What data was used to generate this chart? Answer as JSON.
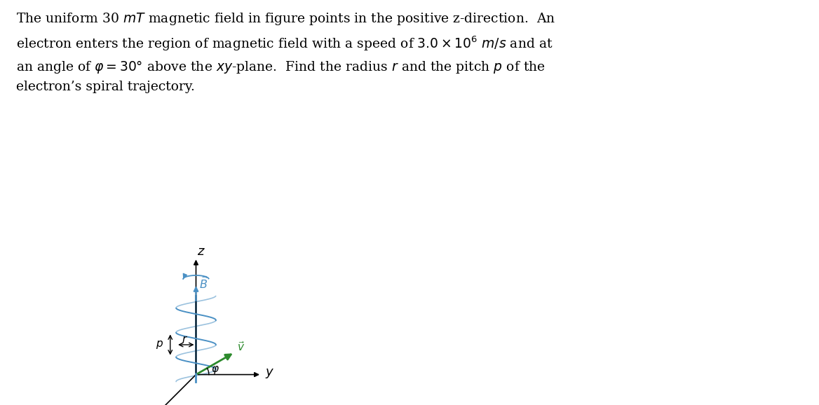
{
  "title_text": "The uniform 30 $mT$ magnetic field in figure points in the positive z-direction.  An\nelectron enters the region of magnetic field with a speed of $3.0 \\times 10^6$ $m/s$ and at\nan angle of $\\varphi = 30°$ above the $xy$-plane.  Find the radius $r$ and the pitch $p$ of the\nelectron’s spiral trajectory.",
  "text_color": "#000000",
  "spiral_color": "#4a90c4",
  "axis_color": "#4a90c4",
  "B_arrow_color": "#4a90c4",
  "v_arrow_color": "#2d8a2d",
  "background_color": "#ffffff",
  "fig_width": 11.68,
  "fig_height": 5.78,
  "title_fontsize": 13.5,
  "label_fontsize": 13
}
